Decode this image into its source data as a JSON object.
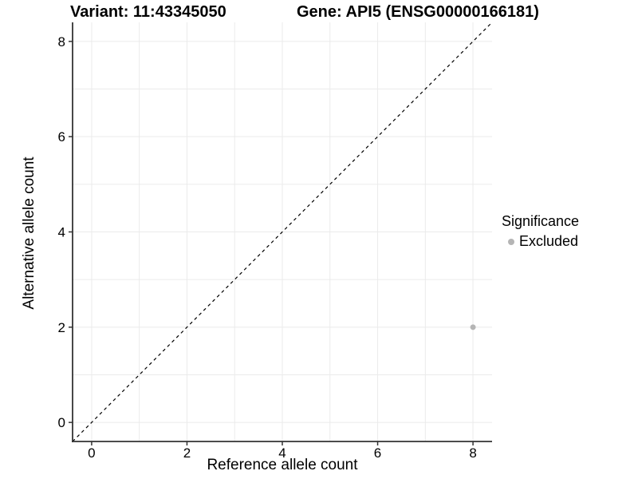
{
  "chart_data": {
    "type": "scatter",
    "titles": {
      "variant": "Variant: 11:43345050",
      "gene": "Gene: API5 (ENSG00000166181)"
    },
    "xlabel": "Reference allele count",
    "ylabel": "Alternative allele count",
    "xlim": [
      -0.4,
      8.4
    ],
    "ylim": [
      -0.4,
      8.4
    ],
    "xticks": [
      0,
      2,
      4,
      6,
      8
    ],
    "yticks": [
      0,
      2,
      4,
      6,
      8
    ],
    "grid": {
      "show": true,
      "positions": [
        0,
        1,
        2,
        3,
        4,
        5,
        6,
        7,
        8
      ],
      "color": "#ebebeb"
    },
    "reference_line": {
      "type": "identity",
      "equation": "y = x",
      "style": "dashed",
      "color": "#000000"
    },
    "series": [
      {
        "name": "Excluded",
        "color": "#b5b5b5",
        "points": [
          {
            "x": 8,
            "y": 2
          }
        ]
      }
    ],
    "legend": {
      "title": "Significance",
      "position": "right",
      "items": [
        {
          "label": "Excluded",
          "color": "#b5b5b5",
          "marker": "circle"
        }
      ]
    }
  },
  "colors": {
    "background": "#ffffff",
    "axis_line": "#333333",
    "gridline": "#ebebeb",
    "tick_text": "#000000"
  }
}
